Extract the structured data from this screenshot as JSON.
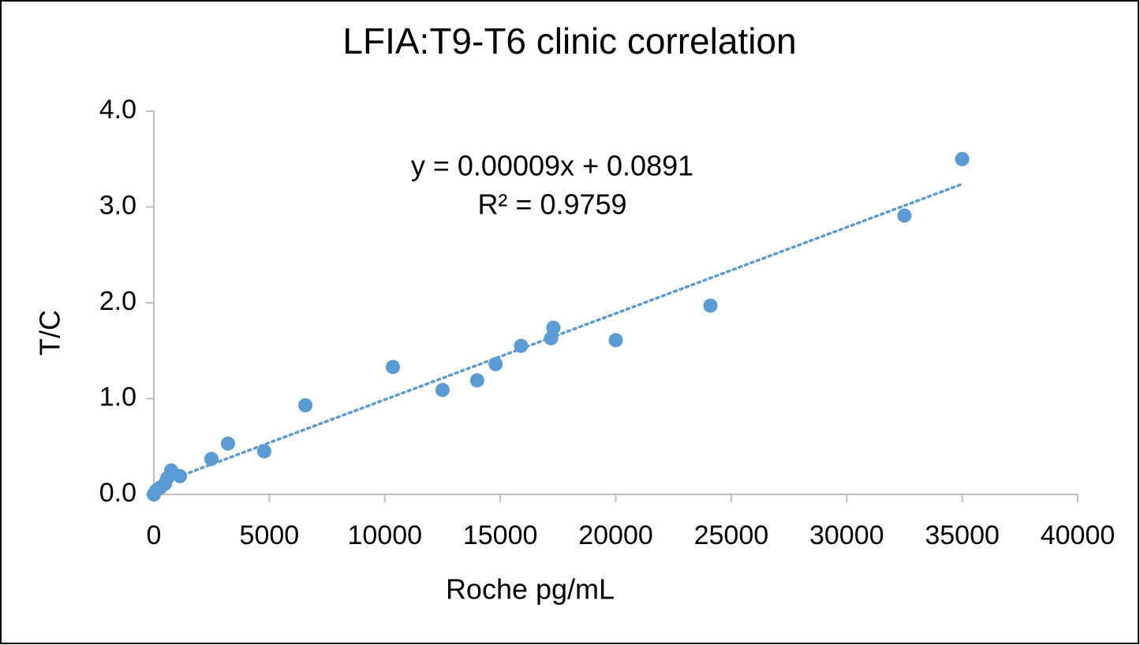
{
  "chart_data": {
    "type": "scatter",
    "title": "LFIA:T9-T6 clinic correlation",
    "x_label": "Roche pg/mL",
    "y_label": "T/C",
    "xlim": [
      0,
      40000
    ],
    "ylim": [
      0,
      4
    ],
    "xticks": [
      0,
      5000,
      10000,
      15000,
      20000,
      25000,
      30000,
      35000,
      40000
    ],
    "yticks": [
      {
        "value": 0,
        "label": "0.0"
      },
      {
        "value": 1,
        "label": "1.0"
      },
      {
        "value": 2,
        "label": "2.0"
      },
      {
        "value": 3,
        "label": "3.0"
      },
      {
        "value": 4,
        "label": "4.0"
      }
    ],
    "grid": false,
    "series": [
      {
        "color": "#5b9bd5",
        "x": [
          35000,
          32500,
          24100,
          20000,
          17300,
          17200,
          15900,
          14800,
          14000,
          12500,
          10350,
          6560,
          4780,
          3210,
          2490,
          1130,
          750,
          580,
          480,
          270,
          100,
          0
        ],
        "values": [
          3.5,
          2.91,
          1.97,
          1.61,
          1.74,
          1.63,
          1.55,
          1.36,
          1.19,
          1.09,
          1.33,
          0.93,
          0.45,
          0.53,
          0.37,
          0.19,
          0.25,
          0.17,
          0.11,
          0.07,
          0.04,
          0.0
        ]
      }
    ],
    "trendline": {
      "equation": "y = 0.00009x + 0.0891",
      "r_squared": "R² = 0.9759",
      "slope": 9e-05,
      "intercept": 0.0891,
      "color": "#5b9bd5"
    }
  }
}
